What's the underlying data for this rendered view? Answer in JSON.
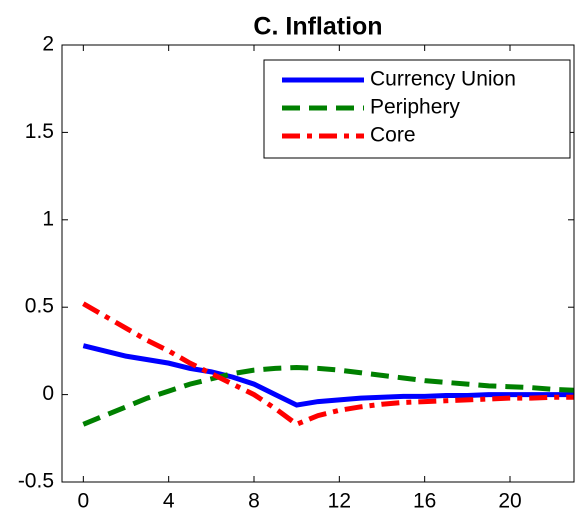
{
  "chart_data": {
    "type": "line",
    "title": "C. Inflation",
    "x": [
      0,
      1,
      2,
      3,
      4,
      5,
      6,
      7,
      8,
      9,
      10,
      11,
      12,
      13,
      14,
      15,
      16,
      17,
      18,
      19,
      20,
      21,
      22,
      23
    ],
    "series": [
      {
        "name": "Currency Union",
        "color": "#0000ff",
        "dash": "solid",
        "values": [
          0.28,
          0.25,
          0.22,
          0.2,
          0.18,
          0.15,
          0.13,
          0.1,
          0.06,
          0.0,
          -0.06,
          -0.04,
          -0.03,
          -0.02,
          -0.015,
          -0.01,
          -0.01,
          -0.005,
          -0.005,
          0,
          0,
          0,
          0,
          0
        ]
      },
      {
        "name": "Periphery",
        "color": "#008000",
        "dash": "dashed",
        "values": [
          -0.17,
          -0.12,
          -0.07,
          -0.02,
          0.02,
          0.06,
          0.09,
          0.12,
          0.14,
          0.15,
          0.155,
          0.15,
          0.14,
          0.125,
          0.11,
          0.095,
          0.08,
          0.07,
          0.06,
          0.05,
          0.045,
          0.04,
          0.03,
          0.025
        ]
      },
      {
        "name": "Core",
        "color": "#ff0000",
        "dash": "dashdot",
        "values": [
          0.52,
          0.45,
          0.38,
          0.31,
          0.25,
          0.18,
          0.12,
          0.06,
          0.0,
          -0.08,
          -0.17,
          -0.12,
          -0.09,
          -0.07,
          -0.055,
          -0.045,
          -0.04,
          -0.035,
          -0.03,
          -0.025,
          -0.02,
          -0.02,
          -0.015,
          -0.015
        ]
      }
    ],
    "xlim": [
      -1,
      23
    ],
    "xticks": [
      0,
      4,
      8,
      12,
      16,
      20
    ],
    "ylim": [
      -0.5,
      2
    ],
    "yticks": [
      -0.5,
      0,
      0.5,
      1,
      1.5,
      2
    ],
    "legend": "top-right"
  }
}
